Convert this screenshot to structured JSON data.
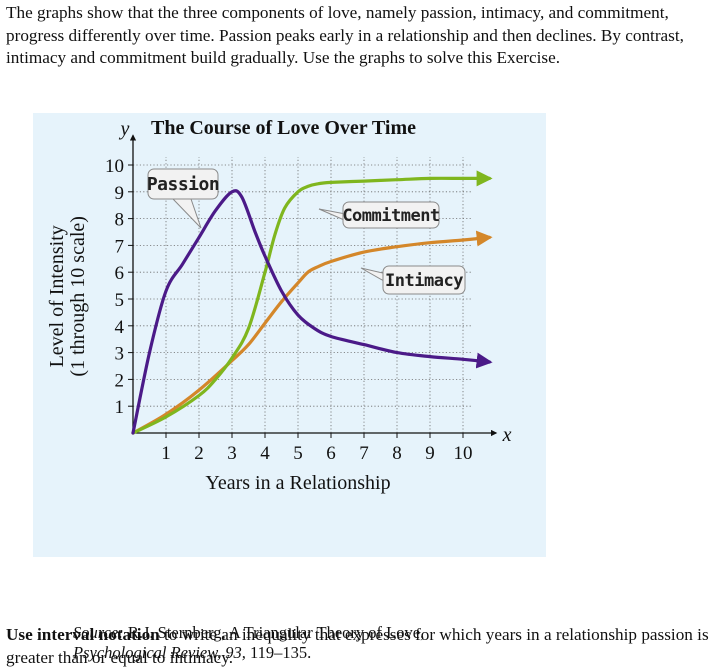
{
  "intro_text": "The graphs show that the three components of love, namely passion, intimacy, and commitment, progress differently over time.  Passion peaks early in a relationship and then declines.  By contrast, intimacy and commitment build gradually.  Use the graphs to solve this Exercise.",
  "source": {
    "label": "Source:",
    "text": " R.J. Sternberg, A Triangular Theory of Love,",
    "journal": "Psychological Review, 93,",
    "pages": " 119–135."
  },
  "question": {
    "bold": "Use interval notation",
    "rest": " to write an inequality that expresses for which years in a relationship passion is greater than or equal to intimacy."
  },
  "colors": {
    "passion": "#4b1a88",
    "commitment": "#7fb61e",
    "intimacy": "#d4872a",
    "background": "#e6f3fb"
  },
  "chart_data": {
    "type": "line",
    "title": "The Course of Love Over Time",
    "x_axis_letter": "x",
    "y_axis_letter": "y",
    "xlabel": "Years in a Relationship",
    "ylabel_line1": "Level of Intensity",
    "ylabel_line2": "(1 through 10 scale)",
    "xlim": [
      0,
      10
    ],
    "ylim": [
      0,
      10
    ],
    "x_ticks": [
      1,
      2,
      3,
      4,
      5,
      6,
      7,
      8,
      9,
      10
    ],
    "y_ticks": [
      1,
      2,
      3,
      4,
      5,
      6,
      7,
      8,
      9,
      10
    ],
    "grid": true,
    "series": [
      {
        "name": "Passion",
        "key": "passion",
        "x": [
          0,
          0.5,
          1,
          1.5,
          2,
          2.5,
          3,
          3.3,
          3.7,
          4,
          4.5,
          5,
          5.5,
          6,
          7,
          8,
          9,
          10,
          10.8
        ],
        "y": [
          0,
          3,
          5.3,
          6.3,
          7.3,
          8.3,
          9,
          8.8,
          7.5,
          6.6,
          5.3,
          4.4,
          3.9,
          3.6,
          3.3,
          3.0,
          2.85,
          2.75,
          2.65
        ]
      },
      {
        "name": "Commitment",
        "key": "commitment",
        "x": [
          0,
          1,
          2,
          2.5,
          3,
          3.5,
          4,
          4.3,
          4.6,
          5,
          5.3,
          5.6,
          6,
          7,
          8,
          9,
          10,
          10.8
        ],
        "y": [
          0,
          0.6,
          1.4,
          2,
          2.8,
          3.9,
          6,
          7.4,
          8.4,
          9.0,
          9.2,
          9.3,
          9.35,
          9.4,
          9.45,
          9.5,
          9.5,
          9.5
        ]
      },
      {
        "name": "Intimacy",
        "key": "intimacy",
        "x": [
          0,
          1,
          2,
          3,
          3.5,
          4,
          4.5,
          5,
          5.3,
          5.6,
          6,
          7,
          8,
          9,
          10,
          10.8
        ],
        "y": [
          0,
          0.7,
          1.6,
          2.7,
          3.3,
          4.1,
          4.9,
          5.6,
          6.0,
          6.2,
          6.4,
          6.75,
          6.95,
          7.1,
          7.2,
          7.3
        ]
      }
    ],
    "callouts": [
      {
        "series": "passion",
        "text": "Passion"
      },
      {
        "series": "commitment",
        "text": "Commitment"
      },
      {
        "series": "intimacy",
        "text": "Intimacy"
      }
    ]
  }
}
